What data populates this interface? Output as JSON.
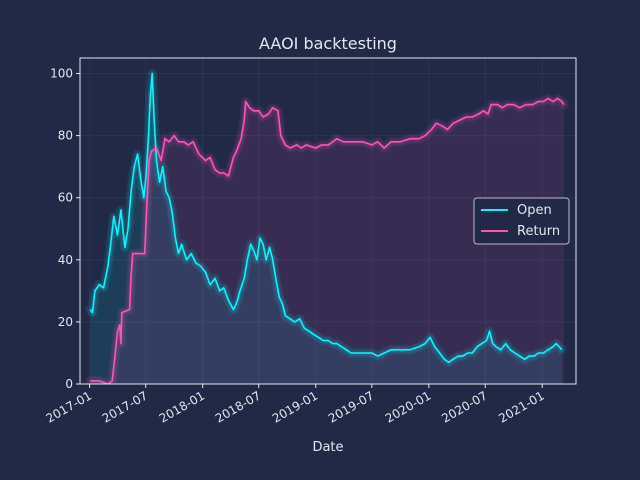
{
  "chart_data": {
    "type": "line",
    "title": "AAOI backtesting",
    "xlabel": "Date",
    "ylabel": "",
    "xlim": [
      "2016-12-01",
      "2021-04-20"
    ],
    "ylim": [
      0,
      105
    ],
    "x_ticks": [
      "2017-01",
      "2017-07",
      "2018-01",
      "2018-07",
      "2019-01",
      "2019-07",
      "2020-01",
      "2020-07",
      "2021-01"
    ],
    "y_ticks": [
      0,
      20,
      40,
      60,
      80,
      100
    ],
    "grid": true,
    "legend": "center-right",
    "series": [
      {
        "name": "Open",
        "color": "#08F7FE",
        "points": [
          [
            "2017-01-03",
            24
          ],
          [
            "2017-01-10",
            23
          ],
          [
            "2017-01-18",
            30
          ],
          [
            "2017-02-01",
            32
          ],
          [
            "2017-02-15",
            31
          ],
          [
            "2017-03-01",
            38
          ],
          [
            "2017-03-10",
            45
          ],
          [
            "2017-03-20",
            54
          ],
          [
            "2017-04-01",
            48
          ],
          [
            "2017-04-12",
            56
          ],
          [
            "2017-04-25",
            44
          ],
          [
            "2017-05-05",
            50
          ],
          [
            "2017-05-15",
            62
          ],
          [
            "2017-05-25",
            70
          ],
          [
            "2017-06-05",
            74
          ],
          [
            "2017-06-15",
            66
          ],
          [
            "2017-06-25",
            60
          ],
          [
            "2017-07-03",
            68
          ],
          [
            "2017-07-10",
            80
          ],
          [
            "2017-07-16",
            93
          ],
          [
            "2017-07-22",
            100
          ],
          [
            "2017-07-28",
            86
          ],
          [
            "2017-08-05",
            72
          ],
          [
            "2017-08-15",
            65
          ],
          [
            "2017-08-25",
            70
          ],
          [
            "2017-09-05",
            62
          ],
          [
            "2017-09-15",
            60
          ],
          [
            "2017-09-25",
            55
          ],
          [
            "2017-10-05",
            47
          ],
          [
            "2017-10-15",
            42
          ],
          [
            "2017-10-25",
            45
          ],
          [
            "2017-11-10",
            40
          ],
          [
            "2017-11-25",
            42
          ],
          [
            "2017-12-10",
            39
          ],
          [
            "2017-12-25",
            38
          ],
          [
            "2018-01-10",
            36
          ],
          [
            "2018-01-25",
            32
          ],
          [
            "2018-02-10",
            34
          ],
          [
            "2018-02-25",
            30
          ],
          [
            "2018-03-10",
            31
          ],
          [
            "2018-03-25",
            27
          ],
          [
            "2018-04-10",
            24
          ],
          [
            "2018-04-20",
            26
          ],
          [
            "2018-05-01",
            30
          ],
          [
            "2018-05-15",
            34
          ],
          [
            "2018-05-25",
            40
          ],
          [
            "2018-06-05",
            45
          ],
          [
            "2018-06-15",
            43
          ],
          [
            "2018-06-25",
            40
          ],
          [
            "2018-07-05",
            47
          ],
          [
            "2018-07-15",
            45
          ],
          [
            "2018-07-25",
            40
          ],
          [
            "2018-08-05",
            44
          ],
          [
            "2018-08-15",
            40
          ],
          [
            "2018-08-25",
            34
          ],
          [
            "2018-09-05",
            28
          ],
          [
            "2018-09-15",
            26
          ],
          [
            "2018-09-25",
            22
          ],
          [
            "2018-10-10",
            21
          ],
          [
            "2018-10-25",
            20
          ],
          [
            "2018-11-10",
            21
          ],
          [
            "2018-11-25",
            18
          ],
          [
            "2018-12-10",
            17
          ],
          [
            "2018-12-25",
            16
          ],
          [
            "2019-01-10",
            15
          ],
          [
            "2019-01-25",
            14
          ],
          [
            "2019-02-10",
            14
          ],
          [
            "2019-02-25",
            13
          ],
          [
            "2019-03-10",
            13
          ],
          [
            "2019-03-25",
            12
          ],
          [
            "2019-04-10",
            11
          ],
          [
            "2019-04-25",
            10
          ],
          [
            "2019-05-10",
            10
          ],
          [
            "2019-06-01",
            10
          ],
          [
            "2019-07-01",
            10
          ],
          [
            "2019-07-20",
            9
          ],
          [
            "2019-08-10",
            10
          ],
          [
            "2019-09-01",
            11
          ],
          [
            "2019-10-01",
            11
          ],
          [
            "2019-11-01",
            11
          ],
          [
            "2019-12-01",
            12
          ],
          [
            "2019-12-20",
            13
          ],
          [
            "2020-01-05",
            15
          ],
          [
            "2020-01-20",
            12
          ],
          [
            "2020-02-05",
            10
          ],
          [
            "2020-02-20",
            8
          ],
          [
            "2020-03-05",
            7
          ],
          [
            "2020-03-20",
            8
          ],
          [
            "2020-04-05",
            9
          ],
          [
            "2020-04-20",
            9
          ],
          [
            "2020-05-05",
            10
          ],
          [
            "2020-05-20",
            10
          ],
          [
            "2020-06-05",
            12
          ],
          [
            "2020-06-20",
            13
          ],
          [
            "2020-07-05",
            14
          ],
          [
            "2020-07-15",
            17
          ],
          [
            "2020-07-25",
            13
          ],
          [
            "2020-08-05",
            12
          ],
          [
            "2020-08-20",
            11
          ],
          [
            "2020-09-05",
            13
          ],
          [
            "2020-09-20",
            11
          ],
          [
            "2020-10-05",
            10
          ],
          [
            "2020-10-20",
            9
          ],
          [
            "2020-11-05",
            8
          ],
          [
            "2020-11-20",
            9
          ],
          [
            "2020-12-05",
            9
          ],
          [
            "2020-12-20",
            10
          ],
          [
            "2021-01-05",
            10
          ],
          [
            "2021-01-20",
            11
          ],
          [
            "2021-02-05",
            12
          ],
          [
            "2021-02-15",
            13
          ],
          [
            "2021-02-25",
            12
          ],
          [
            "2021-03-05",
            11
          ]
        ]
      },
      {
        "name": "Return",
        "color": "#FE53BB",
        "points": [
          [
            "2017-01-03",
            1
          ],
          [
            "2017-02-01",
            1
          ],
          [
            "2017-03-01",
            0
          ],
          [
            "2017-03-15",
            1
          ],
          [
            "2017-03-25",
            10
          ],
          [
            "2017-04-01",
            17
          ],
          [
            "2017-04-08",
            19
          ],
          [
            "2017-04-12",
            13
          ],
          [
            "2017-04-15",
            23
          ],
          [
            "2017-05-10",
            24
          ],
          [
            "2017-05-15",
            35
          ],
          [
            "2017-05-20",
            42
          ],
          [
            "2017-06-28",
            42
          ],
          [
            "2017-07-05",
            58
          ],
          [
            "2017-07-12",
            72
          ],
          [
            "2017-07-20",
            75
          ],
          [
            "2017-08-05",
            76
          ],
          [
            "2017-08-20",
            72
          ],
          [
            "2017-09-01",
            79
          ],
          [
            "2017-09-15",
            78
          ],
          [
            "2017-10-01",
            80
          ],
          [
            "2017-10-15",
            78
          ],
          [
            "2017-11-01",
            78
          ],
          [
            "2017-11-15",
            77
          ],
          [
            "2017-12-01",
            78
          ],
          [
            "2017-12-20",
            74
          ],
          [
            "2018-01-10",
            72
          ],
          [
            "2018-01-25",
            73
          ],
          [
            "2018-02-10",
            69
          ],
          [
            "2018-02-25",
            68
          ],
          [
            "2018-03-10",
            68
          ],
          [
            "2018-03-25",
            67
          ],
          [
            "2018-04-10",
            73
          ],
          [
            "2018-04-20",
            75
          ],
          [
            "2018-05-05",
            79
          ],
          [
            "2018-05-15",
            85
          ],
          [
            "2018-05-20",
            91
          ],
          [
            "2018-06-01",
            89
          ],
          [
            "2018-06-15",
            88
          ],
          [
            "2018-07-01",
            88
          ],
          [
            "2018-07-15",
            86
          ],
          [
            "2018-08-01",
            87
          ],
          [
            "2018-08-15",
            89
          ],
          [
            "2018-09-01",
            88
          ],
          [
            "2018-09-10",
            80
          ],
          [
            "2018-09-25",
            77
          ],
          [
            "2018-10-10",
            76
          ],
          [
            "2018-11-01",
            77
          ],
          [
            "2018-11-15",
            76
          ],
          [
            "2018-12-01",
            77
          ],
          [
            "2019-01-01",
            76
          ],
          [
            "2019-01-20",
            77
          ],
          [
            "2019-02-10",
            77
          ],
          [
            "2019-02-25",
            78
          ],
          [
            "2019-03-10",
            79
          ],
          [
            "2019-04-01",
            78
          ],
          [
            "2019-05-01",
            78
          ],
          [
            "2019-06-01",
            78
          ],
          [
            "2019-07-01",
            77
          ],
          [
            "2019-07-20",
            78
          ],
          [
            "2019-08-10",
            76
          ],
          [
            "2019-09-01",
            78
          ],
          [
            "2019-10-01",
            78
          ],
          [
            "2019-11-01",
            79
          ],
          [
            "2019-12-01",
            79
          ],
          [
            "2019-12-20",
            80
          ],
          [
            "2020-01-10",
            82
          ],
          [
            "2020-01-25",
            84
          ],
          [
            "2020-02-15",
            83
          ],
          [
            "2020-03-01",
            82
          ],
          [
            "2020-03-20",
            84
          ],
          [
            "2020-04-10",
            85
          ],
          [
            "2020-05-01",
            86
          ],
          [
            "2020-05-20",
            86
          ],
          [
            "2020-06-10",
            87
          ],
          [
            "2020-06-25",
            88
          ],
          [
            "2020-07-10",
            87
          ],
          [
            "2020-07-20",
            90
          ],
          [
            "2020-08-10",
            90
          ],
          [
            "2020-08-25",
            89
          ],
          [
            "2020-09-10",
            90
          ],
          [
            "2020-10-01",
            90
          ],
          [
            "2020-10-20",
            89
          ],
          [
            "2020-11-10",
            90
          ],
          [
            "2020-12-01",
            90
          ],
          [
            "2020-12-20",
            91
          ],
          [
            "2021-01-05",
            91
          ],
          [
            "2021-01-20",
            92
          ],
          [
            "2021-02-05",
            91
          ],
          [
            "2021-02-20",
            92
          ],
          [
            "2021-03-05",
            91
          ],
          [
            "2021-03-12",
            90
          ]
        ]
      }
    ]
  },
  "style": {
    "background": "#212946",
    "grid_color": "#2A3459",
    "spine_color": "#e4e6ee",
    "text_color": "#e4e6ee"
  }
}
